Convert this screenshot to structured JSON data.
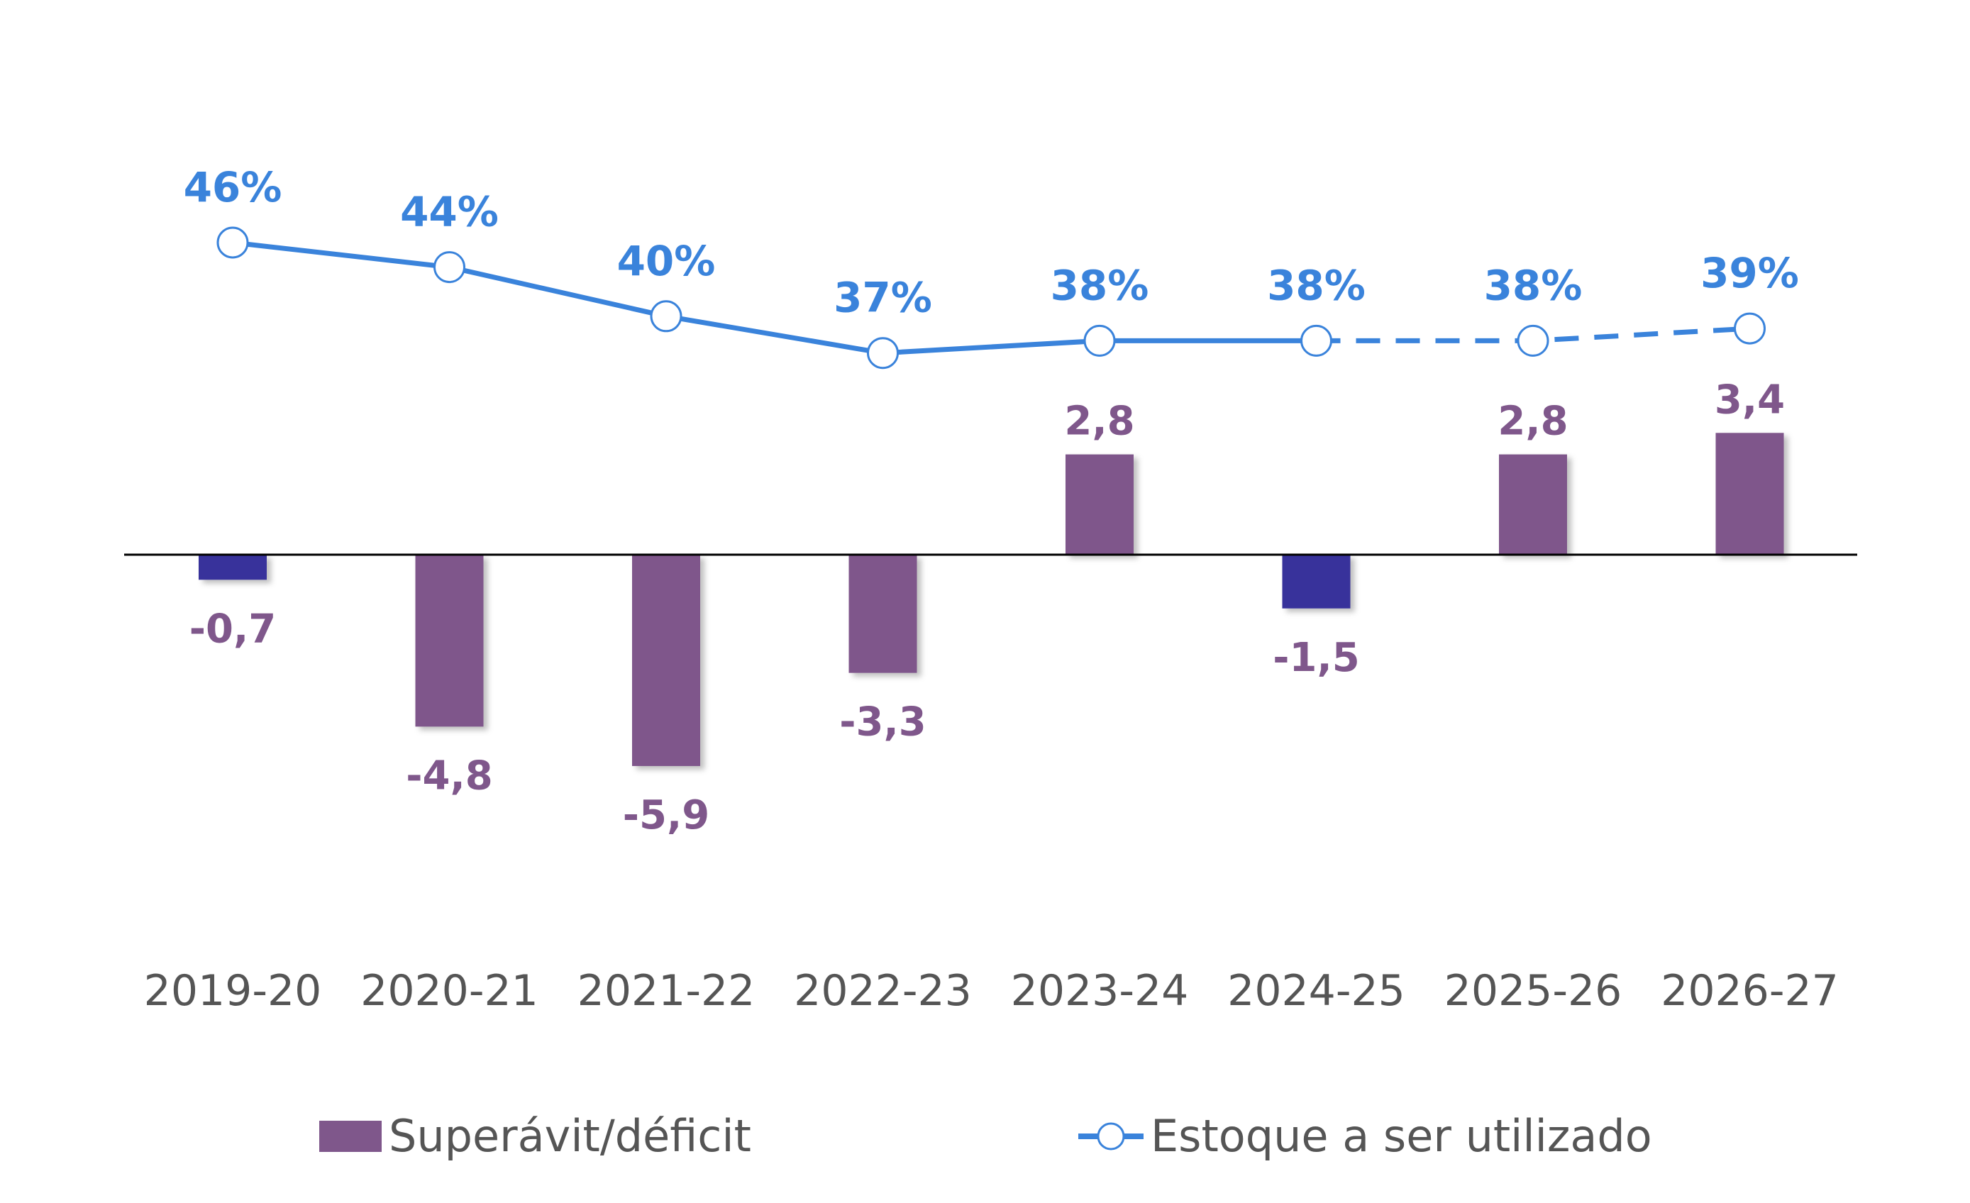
{
  "chart_data": {
    "type": "bar+line",
    "title": "",
    "xlabel": "",
    "ylabel": "",
    "categories": [
      "2019-20",
      "2020-21",
      "2021-22",
      "2022-23",
      "2023-24",
      "2024-25",
      "2025-26",
      "2026-27"
    ],
    "series": [
      {
        "name": "Superávit/déficit",
        "type": "bar",
        "values": [
          -0.7,
          -4.8,
          -5.9,
          -3.3,
          2.8,
          -1.5,
          2.8,
          3.4
        ],
        "labels": [
          "-0,7",
          "-4,8",
          "-5,9",
          "-3,3",
          "2,8",
          "-1,5",
          "2,8",
          "3,4"
        ],
        "color": "#7F578B",
        "highlight_color": "#39339B",
        "highlighted_categories": [
          "2019-20",
          "2024-25"
        ]
      },
      {
        "name": "Estoque a ser utilizado",
        "type": "line",
        "values": [
          46,
          44,
          40,
          37,
          38,
          38,
          38,
          39
        ],
        "labels": [
          "46%",
          "44%",
          "40%",
          "37%",
          "38%",
          "38%",
          "38%",
          "39%"
        ],
        "color": "#3A83DB",
        "projected_from": "2024-25",
        "projected_style": "dashed"
      }
    ],
    "bar_axis_range": [
      -10,
      10
    ],
    "line_axis_range": [
      10,
      55
    ],
    "grid": false,
    "legend_position": "bottom"
  }
}
